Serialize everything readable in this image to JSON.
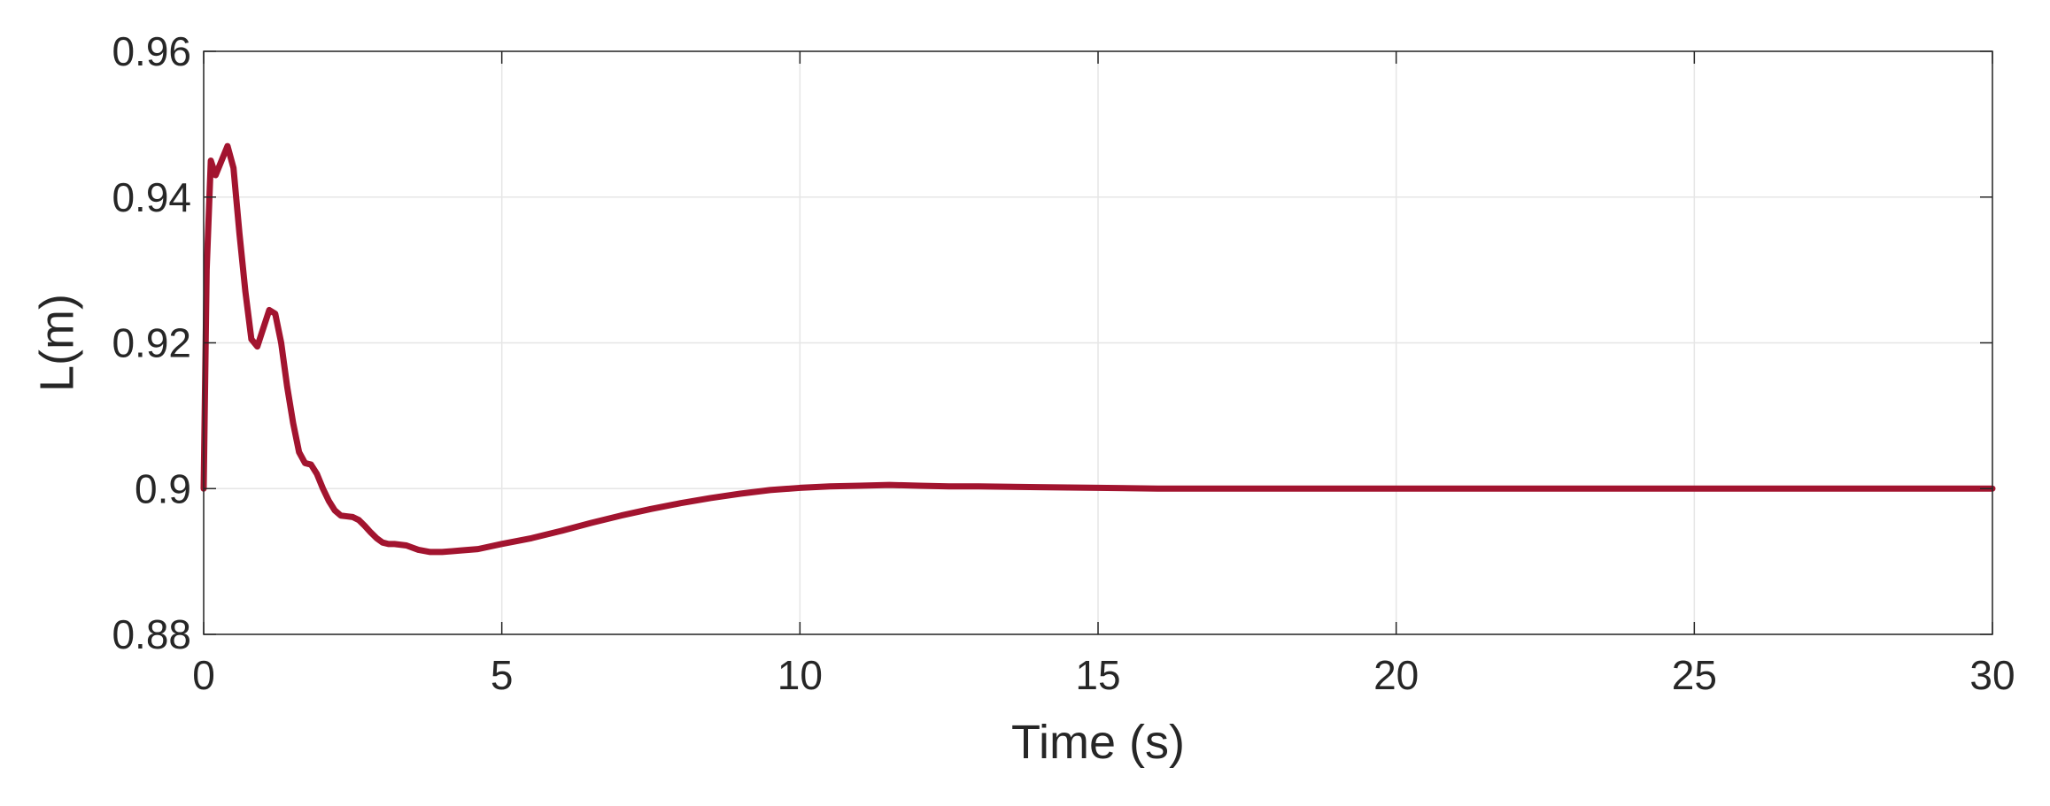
{
  "chart_data": {
    "type": "line",
    "title": "",
    "xlabel": "Time (s)",
    "ylabel": "L(m)",
    "xlim": [
      0,
      30
    ],
    "ylim": [
      0.88,
      0.96
    ],
    "xticks": [
      0,
      5,
      10,
      15,
      20,
      25,
      30
    ],
    "xtick_labels": [
      "0",
      "5",
      "10",
      "15",
      "20",
      "25",
      "30"
    ],
    "yticks": [
      0.88,
      0.9,
      0.92,
      0.94,
      0.96
    ],
    "ytick_labels": [
      "0.88",
      "0.9",
      "0.92",
      "0.94",
      "0.96"
    ],
    "grid": true,
    "colors": {
      "line": "#a2142f",
      "grid": "#e6e6e6",
      "axis": "#262626"
    },
    "series": [
      {
        "x": [
          0,
          0.05,
          0.12,
          0.2,
          0.3,
          0.4,
          0.5,
          0.6,
          0.7,
          0.8,
          0.9,
          1.0,
          1.1,
          1.2,
          1.3,
          1.4,
          1.5,
          1.6,
          1.7,
          1.8,
          1.9,
          2.0,
          2.1,
          2.2,
          2.3,
          2.4,
          2.5,
          2.6,
          2.7,
          2.8,
          2.9,
          3.0,
          3.1,
          3.2,
          3.4,
          3.6,
          3.8,
          4.0,
          4.3,
          4.6,
          5.0,
          5.5,
          6.0,
          6.5,
          7.0,
          7.5,
          8.0,
          8.5,
          9.0,
          9.5,
          10.0,
          10.5,
          11.0,
          11.5,
          12.0,
          12.5,
          13.0,
          14.0,
          15.0,
          16.0,
          17.0,
          18.0,
          20.0,
          22.0,
          25.0,
          28.0,
          30.0
        ],
        "values": [
          0.9,
          0.93,
          0.945,
          0.943,
          0.945,
          0.947,
          0.944,
          0.935,
          0.927,
          0.9205,
          0.9195,
          0.922,
          0.9245,
          0.924,
          0.92,
          0.914,
          0.909,
          0.905,
          0.9035,
          0.9033,
          0.902,
          0.9,
          0.8983,
          0.897,
          0.8963,
          0.8962,
          0.8961,
          0.8957,
          0.8949,
          0.894,
          0.8932,
          0.8926,
          0.8924,
          0.8924,
          0.8922,
          0.8916,
          0.8913,
          0.8913,
          0.8915,
          0.8917,
          0.8924,
          0.8932,
          0.8942,
          0.8953,
          0.8963,
          0.8972,
          0.898,
          0.8987,
          0.8993,
          0.8998,
          0.9001,
          0.9003,
          0.9004,
          0.9005,
          0.9004,
          0.9003,
          0.9003,
          0.9002,
          0.9001,
          0.9,
          0.9,
          0.9,
          0.9,
          0.9,
          0.9,
          0.9,
          0.9
        ]
      }
    ]
  }
}
